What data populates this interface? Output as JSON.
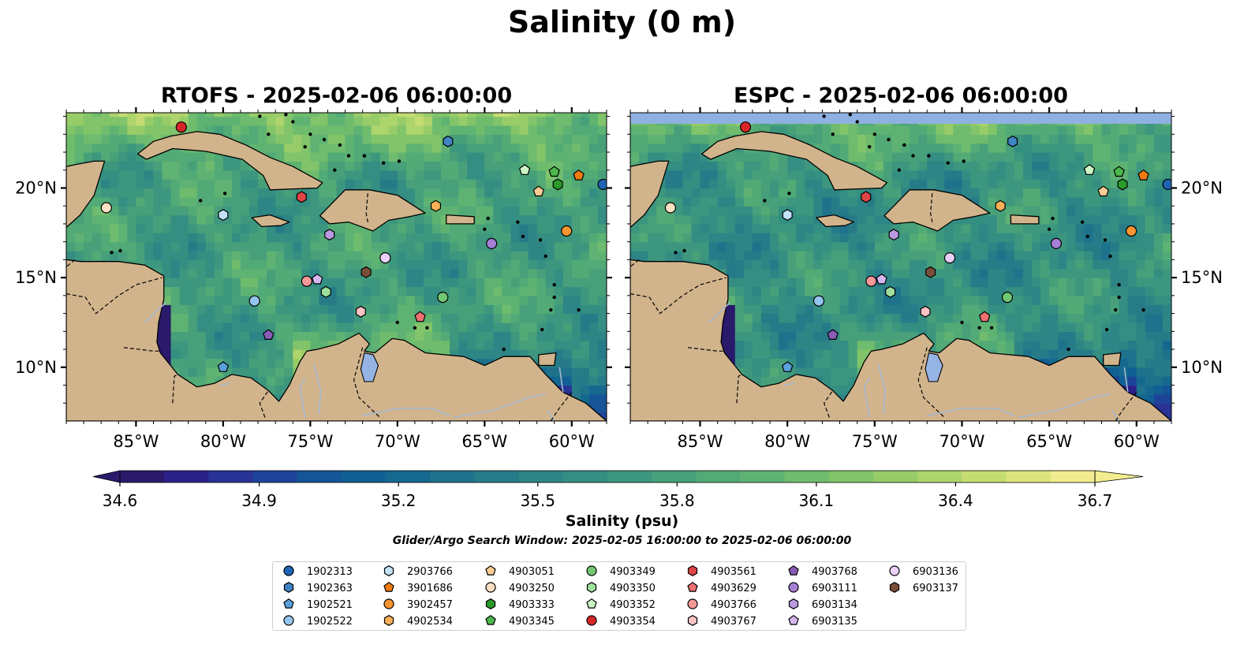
{
  "title": "Salinity (0 m)",
  "panels": [
    {
      "id": "rtofs",
      "title": "RTOFS - 2025-02-06 06:00:00"
    },
    {
      "id": "espc",
      "title": "ESPC - 2025-02-06 06:00:00"
    }
  ],
  "map_extent": {
    "lon": [
      -89,
      -58
    ],
    "lat": [
      7,
      24.2
    ]
  },
  "lon_ticks": [
    {
      "value": -85,
      "label": "85°W"
    },
    {
      "value": -80,
      "label": "80°W"
    },
    {
      "value": -75,
      "label": "75°W"
    },
    {
      "value": -70,
      "label": "70°W"
    },
    {
      "value": -65,
      "label": "65°W"
    },
    {
      "value": -60,
      "label": "60°W"
    }
  ],
  "lat_ticks": [
    {
      "value": 10,
      "label": "10°N"
    },
    {
      "value": 15,
      "label": "15°N"
    },
    {
      "value": 20,
      "label": "20°N"
    }
  ],
  "colors": {
    "land": "#d2b48c",
    "water_bodies": "#95b4e3",
    "missing_band": "#8fb1e1"
  },
  "colorbar": {
    "label": "Salinity (psu)",
    "min": 34.6,
    "max": 36.7,
    "ticks": [
      "34.6",
      "34.9",
      "35.2",
      "35.5",
      "35.8",
      "36.1",
      "36.4",
      "36.7"
    ],
    "colors": [
      "#2a1a6b",
      "#2b2189",
      "#283395",
      "#1e4499",
      "#155497",
      "#125f93",
      "#15698f",
      "#1e728b",
      "#277b88",
      "#2e8585",
      "#358e82",
      "#3d977e",
      "#47a07a",
      "#52aa76",
      "#5fb372",
      "#6fbc6e",
      "#81c46a",
      "#97cc69",
      "#aed46c",
      "#c5dc72",
      "#dce47d",
      "#f1ec8f"
    ]
  },
  "search_window": "Glider/Argo Search Window: 2025-02-05 16:00:00 to 2025-02-06 06:00:00",
  "floats": [
    {
      "id": "1902313",
      "lon": -58.2,
      "lat": 20.2,
      "marker": "circle",
      "color": "#1f63b6"
    },
    {
      "id": "1902363",
      "lon": -67.1,
      "lat": 22.6,
      "marker": "hexagon",
      "color": "#3f84c5"
    },
    {
      "id": "1902521",
      "lon": -80.0,
      "lat": 10.0,
      "marker": "pentagon",
      "color": "#5aa0dd"
    },
    {
      "id": "1902522",
      "lon": -78.2,
      "lat": 13.7,
      "marker": "circle",
      "color": "#94c5ee"
    },
    {
      "id": "2903766",
      "lon": -80.0,
      "lat": 18.5,
      "marker": "hexagon",
      "color": "#c3e2f8"
    },
    {
      "id": "3901686",
      "lon": -59.6,
      "lat": 20.7,
      "marker": "pentagon",
      "color": "#f07a10"
    },
    {
      "id": "3902457",
      "lon": -60.3,
      "lat": 17.6,
      "marker": "circle",
      "color": "#f79532"
    },
    {
      "id": "4902534",
      "lon": -67.8,
      "lat": 19.0,
      "marker": "hexagon",
      "color": "#fbb058"
    },
    {
      "id": "4903051",
      "lon": -61.9,
      "lat": 19.8,
      "marker": "pentagon",
      "color": "#fccc95"
    },
    {
      "id": "4903250",
      "lon": -86.7,
      "lat": 18.9,
      "marker": "circle",
      "color": "#fde0c1"
    },
    {
      "id": "4903333",
      "lon": -60.8,
      "lat": 20.2,
      "marker": "hexagon",
      "color": "#2a9a2a"
    },
    {
      "id": "4903345",
      "lon": -61.0,
      "lat": 20.9,
      "marker": "pentagon",
      "color": "#4cb84c"
    },
    {
      "id": "4903349",
      "lon": -67.4,
      "lat": 13.9,
      "marker": "circle",
      "color": "#72c872"
    },
    {
      "id": "4903350",
      "lon": -74.1,
      "lat": 14.2,
      "marker": "hexagon",
      "color": "#9ee19e"
    },
    {
      "id": "4903352",
      "lon": -62.7,
      "lat": 21.0,
      "marker": "pentagon",
      "color": "#cdf5c6"
    },
    {
      "id": "4903354",
      "lon": -82.4,
      "lat": 23.4,
      "marker": "circle",
      "color": "#d62728"
    },
    {
      "id": "4903561",
      "lon": -75.5,
      "lat": 19.5,
      "marker": "hexagon",
      "color": "#e04545"
    },
    {
      "id": "4903629",
      "lon": -68.7,
      "lat": 12.8,
      "marker": "pentagon",
      "color": "#ee7070"
    },
    {
      "id": "4903766",
      "lon": -75.2,
      "lat": 14.8,
      "marker": "circle",
      "color": "#f59898"
    },
    {
      "id": "4903767",
      "lon": -72.1,
      "lat": 13.1,
      "marker": "hexagon",
      "color": "#fbc3c3"
    },
    {
      "id": "4903768",
      "lon": -77.4,
      "lat": 11.8,
      "marker": "pentagon",
      "color": "#8a5cb7"
    },
    {
      "id": "6903111",
      "lon": -64.6,
      "lat": 16.9,
      "marker": "circle",
      "color": "#a67fd6"
    },
    {
      "id": "6903134",
      "lon": -73.9,
      "lat": 17.4,
      "marker": "hexagon",
      "color": "#bb98e0"
    },
    {
      "id": "6903135",
      "lon": -74.6,
      "lat": 14.9,
      "marker": "pentagon",
      "color": "#d7b6f0"
    },
    {
      "id": "6903136",
      "lon": -70.7,
      "lat": 16.1,
      "marker": "circle",
      "color": "#ebd0fa"
    },
    {
      "id": "6903137",
      "lon": -71.8,
      "lat": 15.3,
      "marker": "hexagon",
      "color": "#7a4e3a"
    }
  ]
}
